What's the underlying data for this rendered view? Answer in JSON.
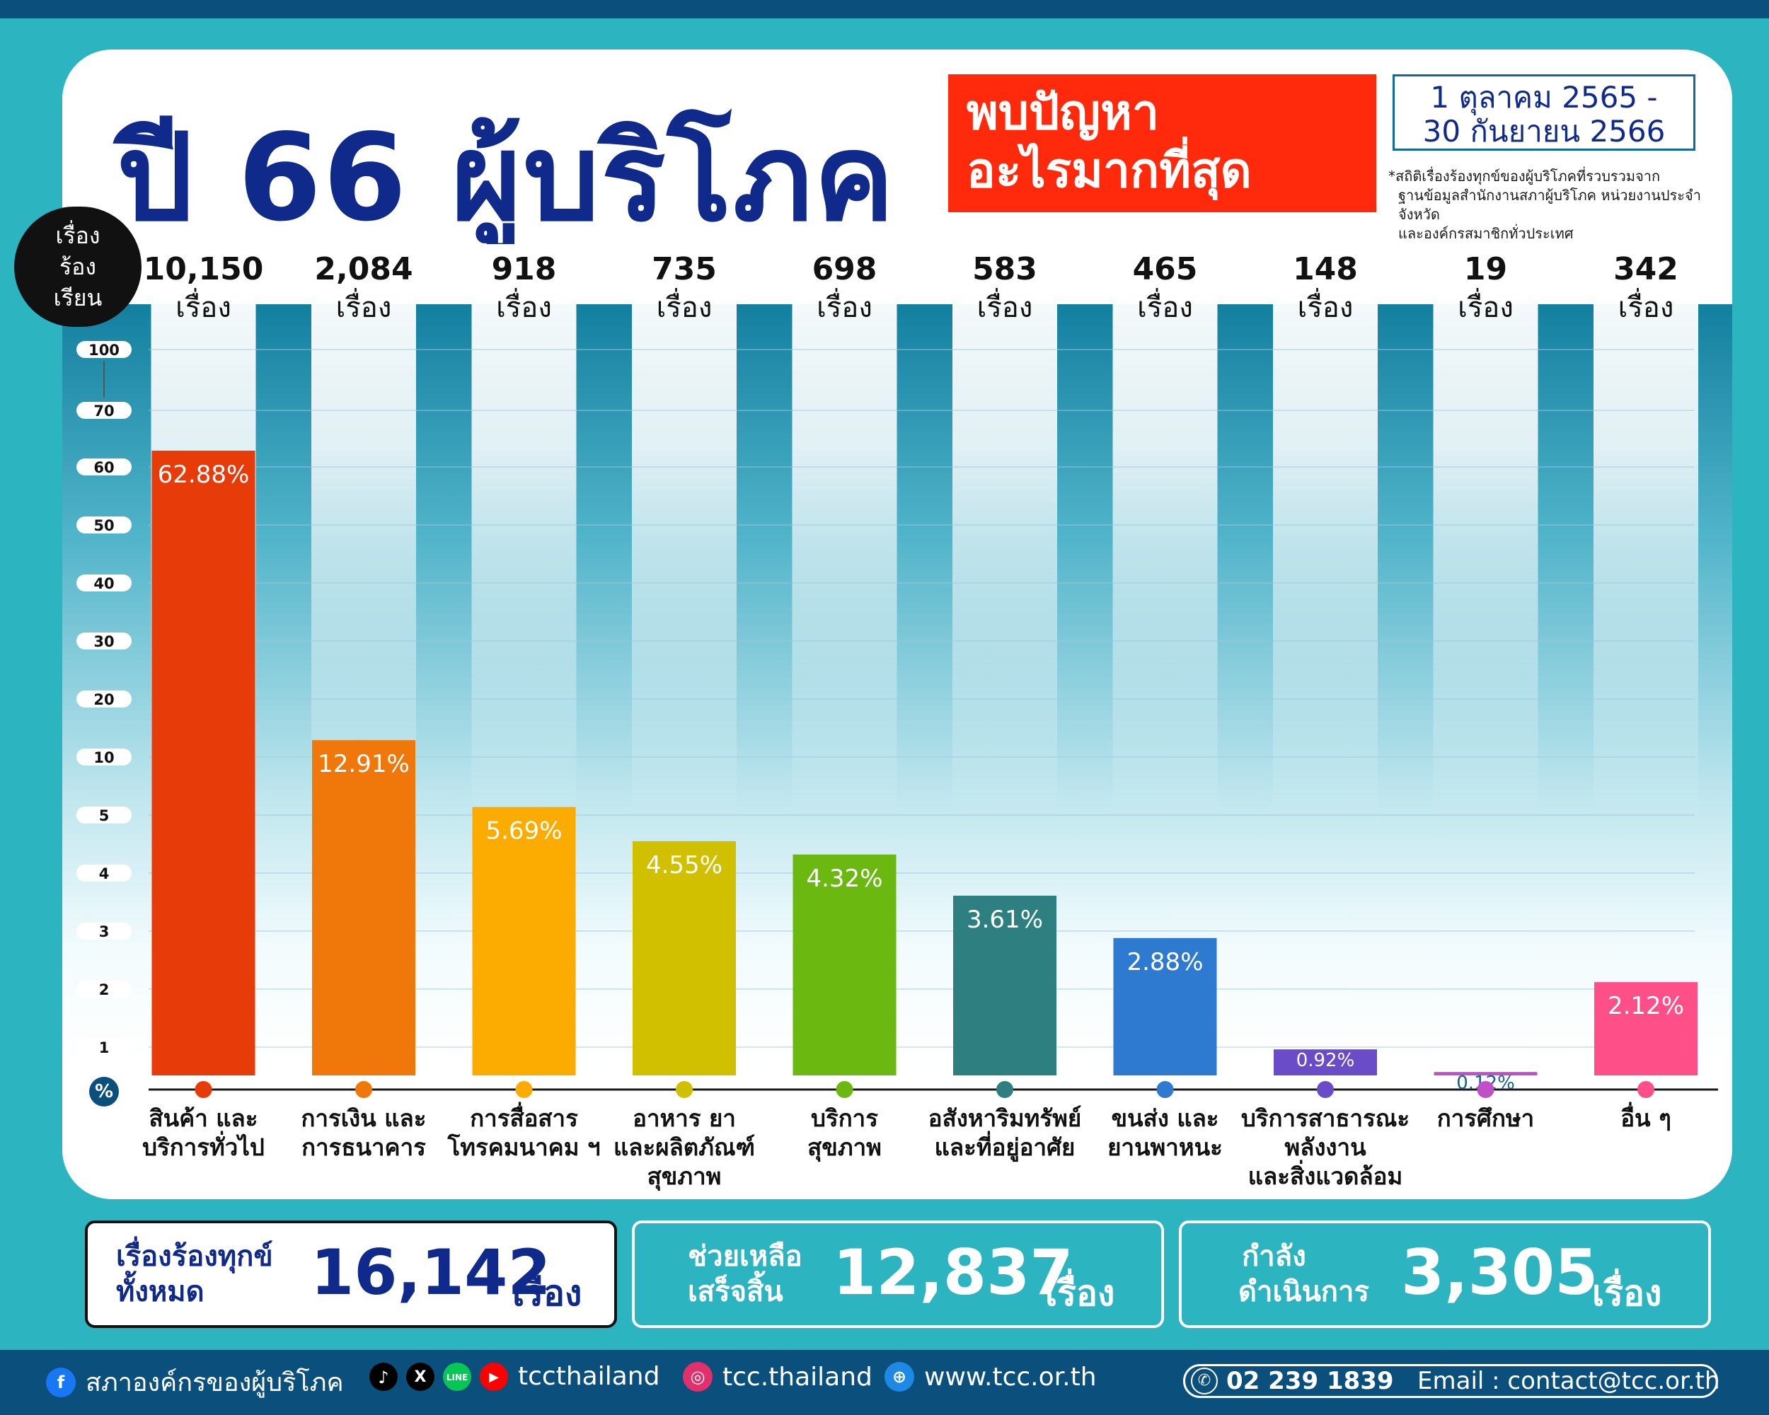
{
  "header": {
    "title": "ปี 66 ผู้บริโภค",
    "highlight_line1": "พบปัญหา",
    "highlight_line2": "อะไรมากที่สุด",
    "date_line1": "1 ตุลาคม 2565 -",
    "date_line2": "30 กันยายน 2566",
    "note_line1": "*สถิติเรื่องร้องทุกข์ของผู้บริโภคที่รวบรวมจาก",
    "note_line2": "ฐานข้อมูลสำนักงานสภาผู้บริโภค หน่วยงานประจำจังหวัด",
    "note_line3": "และองค์กรสมาชิกทั่วประเทศ"
  },
  "y_badge": {
    "line1": "เรื่อง",
    "line2": "ร้อง",
    "line3": "เรียน"
  },
  "percent_symbol": "%",
  "colors": {
    "title": "#0f2a8a",
    "highlight": "#ff2a0c",
    "dark_blue": "#0b4f7c",
    "teal": "#2cb4c0"
  },
  "chart_data": {
    "type": "bar",
    "y_scale": "non-linear (broken) percent axis",
    "y_ticks": [
      "1",
      "2",
      "3",
      "4",
      "5",
      "10",
      "20",
      "30",
      "40",
      "50",
      "60",
      "70",
      "100"
    ],
    "unit_word": "เรื่อง",
    "categories": [
      {
        "label": [
          "สินค้า และ",
          "บริการทั่วไป"
        ],
        "count": "10,150",
        "percent": 62.88,
        "percent_label": "62.88%",
        "color": "#e73c0a"
      },
      {
        "label": [
          "การเงิน และ",
          "การธนาคาร"
        ],
        "count": "2,084",
        "percent": 12.91,
        "percent_label": "12.91%",
        "color": "#f0780a"
      },
      {
        "label": [
          "การสื่อสาร",
          "โทรคมนาคม ฯ"
        ],
        "count": "918",
        "percent": 5.69,
        "percent_label": "5.69%",
        "color": "#fcab00"
      },
      {
        "label": [
          "อาหาร ยา",
          "และผลิตภัณฑ์",
          "สุขภาพ"
        ],
        "count": "735",
        "percent": 4.55,
        "percent_label": "4.55%",
        "color": "#d0c000"
      },
      {
        "label": [
          "บริการ",
          "สุขภาพ"
        ],
        "count": "698",
        "percent": 4.32,
        "percent_label": "4.32%",
        "color": "#6ab810"
      },
      {
        "label": [
          "อสังหาริมทรัพย์",
          "และที่อยู่อาศัย"
        ],
        "count": "583",
        "percent": 3.61,
        "percent_label": "3.61%",
        "color": "#2e7f80"
      },
      {
        "label": [
          "ขนส่ง และ",
          "ยานพาหนะ"
        ],
        "count": "465",
        "percent": 2.88,
        "percent_label": "2.88%",
        "color": "#2d7ad0"
      },
      {
        "label": [
          "บริการสาธารณะ",
          "พลังงาน",
          "และสิ่งแวดล้อม"
        ],
        "count": "148",
        "percent": 0.92,
        "percent_label": "0.92%",
        "color": "#6b4cc8"
      },
      {
        "label": [
          "การศึกษา"
        ],
        "count": "19",
        "percent": 0.12,
        "percent_label": "0.12%",
        "color": "#c050c8"
      },
      {
        "label": [
          "อื่น ๆ"
        ],
        "count": "342",
        "percent": 2.12,
        "percent_label": "2.12%",
        "color": "#ff4f88"
      }
    ]
  },
  "stats": {
    "total_label1": "เรื่องร้องทุกข์",
    "total_label2": "ทั้งหมด",
    "total_value": "16,142",
    "total_unit": "เรื่อง",
    "done_label1": "ช่วยเหลือ",
    "done_label2": "เสร็จสิ้น",
    "done_value": "12,837",
    "done_unit": "เรื่อง",
    "ongoing_label1": "กำลัง",
    "ongoing_label2": "ดำเนินการ",
    "ongoing_value": "3,305",
    "ongoing_unit": "เรื่อง"
  },
  "footer": {
    "facebook": "สภาองค์กรของผู้บริโภค",
    "handle": "tccthailand",
    "instagram": "tcc.thailand",
    "website": "www.tcc.or.th",
    "phone": "02 239 1839",
    "email": "Email : contact@tcc.or.th",
    "line_badge": "LINE",
    "x_badge": "X"
  }
}
